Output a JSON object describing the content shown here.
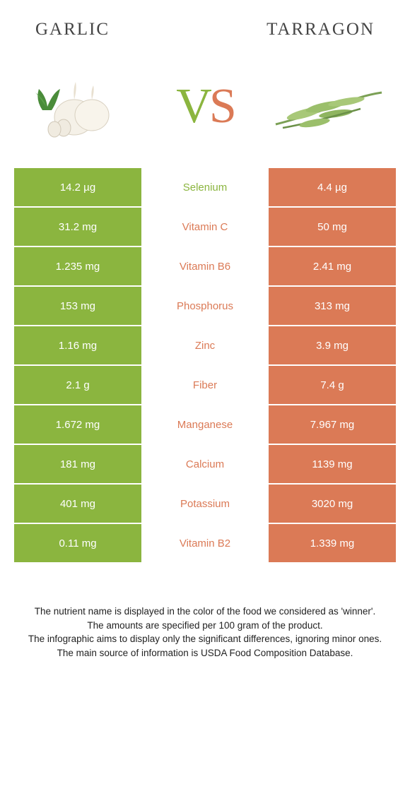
{
  "header": {
    "left": "Garlic",
    "right": "Tarragon"
  },
  "vs": {
    "v": "V",
    "s": "S"
  },
  "colors": {
    "green": "#8bb53f",
    "orange": "#db7a56",
    "white": "#ffffff",
    "text": "#222222"
  },
  "rows": [
    {
      "nutrient": "Selenium",
      "left": "14.2 µg",
      "right": "4.4 µg",
      "winner": "left"
    },
    {
      "nutrient": "Vitamin C",
      "left": "31.2 mg",
      "right": "50 mg",
      "winner": "right"
    },
    {
      "nutrient": "Vitamin B6",
      "left": "1.235 mg",
      "right": "2.41 mg",
      "winner": "right"
    },
    {
      "nutrient": "Phosphorus",
      "left": "153 mg",
      "right": "313 mg",
      "winner": "right"
    },
    {
      "nutrient": "Zinc",
      "left": "1.16 mg",
      "right": "3.9 mg",
      "winner": "right"
    },
    {
      "nutrient": "Fiber",
      "left": "2.1 g",
      "right": "7.4 g",
      "winner": "right"
    },
    {
      "nutrient": "Manganese",
      "left": "1.672 mg",
      "right": "7.967 mg",
      "winner": "right"
    },
    {
      "nutrient": "Calcium",
      "left": "181 mg",
      "right": "1139 mg",
      "winner": "right"
    },
    {
      "nutrient": "Potassium",
      "left": "401 mg",
      "right": "3020 mg",
      "winner": "right"
    },
    {
      "nutrient": "Vitamin B2",
      "left": "0.11 mg",
      "right": "1.339 mg",
      "winner": "right"
    }
  ],
  "footer": {
    "line1": "The nutrient name is displayed in the color of the food we considered as 'winner'.",
    "line2": "The amounts are specified per 100 gram of the product.",
    "line3": "The infographic aims to display only the significant differences, ignoring minor ones.",
    "line4": "The main source of information is USDA Food Composition Database."
  }
}
